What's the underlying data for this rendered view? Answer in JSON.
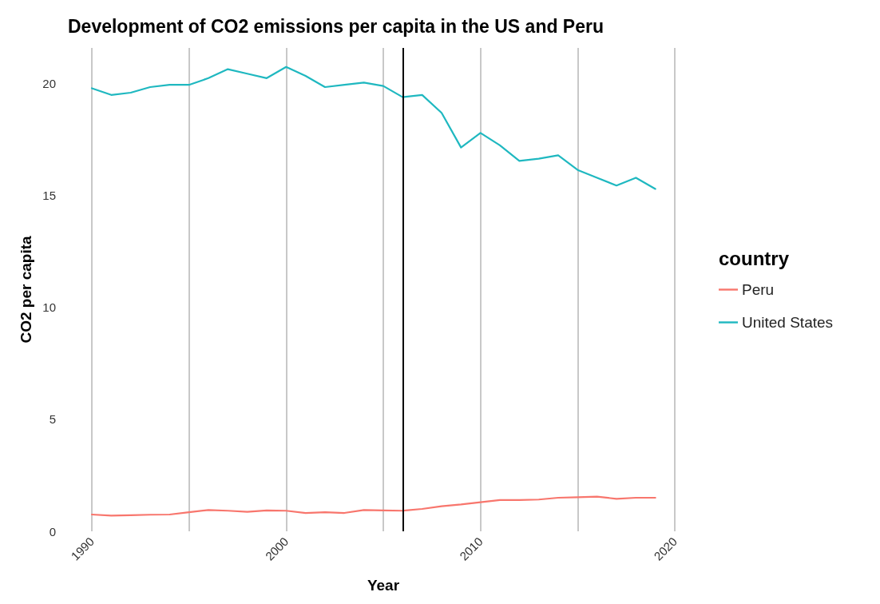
{
  "chart_data": {
    "type": "line",
    "title": "Development of CO2 emissions per capita in the US and Peru",
    "xlabel": "Year",
    "ylabel": "CO2 per capita",
    "legend_title": "country",
    "x": [
      1990,
      1991,
      1992,
      1993,
      1994,
      1995,
      1996,
      1997,
      1998,
      1999,
      2000,
      2001,
      2002,
      2003,
      2004,
      2005,
      2006,
      2007,
      2008,
      2009,
      2010,
      2011,
      2012,
      2013,
      2014,
      2015,
      2016,
      2017,
      2018,
      2019
    ],
    "series": [
      {
        "name": "Peru",
        "color": "#f8766d",
        "values": [
          0.75,
          0.7,
          0.72,
          0.74,
          0.75,
          0.85,
          0.95,
          0.92,
          0.87,
          0.93,
          0.92,
          0.82,
          0.85,
          0.82,
          0.95,
          0.93,
          0.92,
          1.0,
          1.12,
          1.2,
          1.3,
          1.4,
          1.4,
          1.42,
          1.5,
          1.52,
          1.55,
          1.45,
          1.5,
          1.5
        ]
      },
      {
        "name": "United States",
        "color": "#1fb8c0",
        "values": [
          19.8,
          19.5,
          19.6,
          19.85,
          19.95,
          19.95,
          20.25,
          20.65,
          20.45,
          20.25,
          20.75,
          20.35,
          19.85,
          19.95,
          20.05,
          19.9,
          19.4,
          19.5,
          18.7,
          17.15,
          17.8,
          17.25,
          16.55,
          16.65,
          16.8,
          16.15,
          15.8,
          15.45,
          15.8,
          15.3
        ]
      }
    ],
    "xlim": [
      1990,
      2020
    ],
    "xticks": [
      1990,
      {
        "value": 1995,
        "label": null
      },
      2000,
      {
        "value": 2005,
        "label": null
      },
      2010,
      {
        "value": 2015,
        "label": null
      },
      2020
    ],
    "ylim": [
      0,
      21.6
    ],
    "yticks": [
      0,
      5,
      10,
      15,
      20
    ],
    "ref_lines": [
      {
        "axis": "x",
        "value": 2006,
        "color": "#000000"
      }
    ],
    "grid": "x",
    "legend": "right",
    "marker": "none",
    "line_style": "solid"
  }
}
